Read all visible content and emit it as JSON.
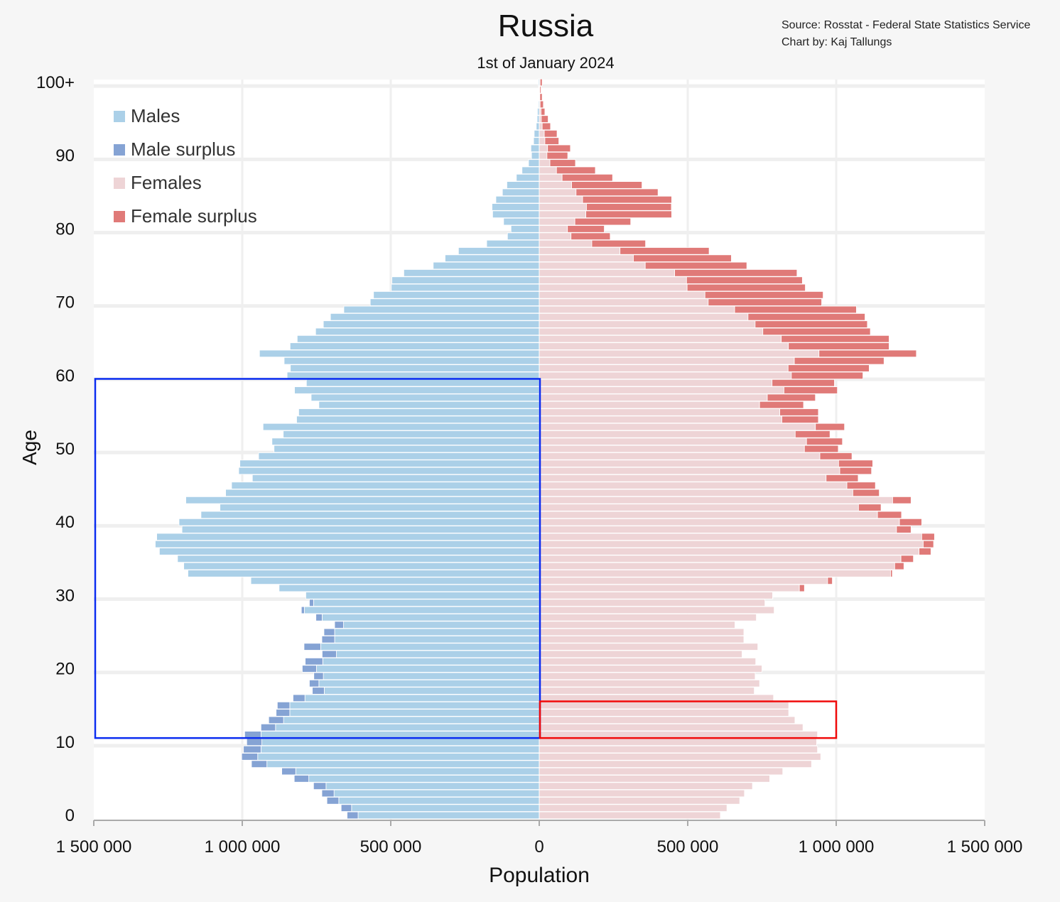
{
  "title": "Russia",
  "subtitle": "1st of January 2024",
  "source_line": "Source: Rosstat - Federal State Statistics Service",
  "credit_line": "Chart by: Kaj Tallungs",
  "colors": {
    "males": "#abd0e8",
    "male_surplus": "#85a3d4",
    "females": "#eed4d6",
    "female_surplus": "#e07a78",
    "highlight_blue": "#0a2cf0",
    "highlight_red": "#f00a0a"
  },
  "legend": [
    {
      "label": "Males",
      "color": "#abd0e8"
    },
    {
      "label": "Male surplus",
      "color": "#85a3d4"
    },
    {
      "label": "Females",
      "color": "#eed4d6"
    },
    {
      "label": "Female surplus",
      "color": "#e07a78"
    }
  ],
  "chart_data": {
    "type": "bar",
    "orientation": "horizontal-pyramid",
    "title": "Russia",
    "subtitle": "1st of January 2024",
    "xlabel": "Population",
    "ylabel": "Age",
    "xlim": [
      -1500000,
      1500000
    ],
    "ylim": [
      0,
      100
    ],
    "grid": true,
    "legend_position": "top-left",
    "x_ticks": [
      {
        "value": -1500000,
        "label": "1 500 000"
      },
      {
        "value": -1000000,
        "label": "1 000 000"
      },
      {
        "value": -500000,
        "label": "500 000"
      },
      {
        "value": 0,
        "label": "0"
      },
      {
        "value": 500000,
        "label": "500 000"
      },
      {
        "value": 1000000,
        "label": "1 000 000"
      },
      {
        "value": 1500000,
        "label": "1 500 000"
      }
    ],
    "y_ticks": [
      {
        "value": 0,
        "label": "0"
      },
      {
        "value": 10,
        "label": "10"
      },
      {
        "value": 20,
        "label": "20"
      },
      {
        "value": 30,
        "label": "30"
      },
      {
        "value": 40,
        "label": "40"
      },
      {
        "value": 50,
        "label": "50"
      },
      {
        "value": 60,
        "label": "60"
      },
      {
        "value": 70,
        "label": "70"
      },
      {
        "value": 80,
        "label": "80"
      },
      {
        "value": 90,
        "label": "90"
      },
      {
        "value": 100,
        "label": "100+"
      }
    ],
    "ages_from": 0,
    "males": [
      647000,
      667000,
      715000,
      732000,
      760000,
      825000,
      867000,
      969000,
      1002000,
      996000,
      985000,
      992000,
      937000,
      911000,
      886000,
      882000,
      829000,
      764000,
      774000,
      759000,
      798000,
      788000,
      731000,
      792000,
      732000,
      725000,
      689000,
      752000,
      801000,
      774000,
      786000,
      876000,
      971000,
      1183000,
      1197000,
      1218000,
      1279000,
      1293000,
      1288000,
      1203000,
      1213000,
      1139000,
      1075000,
      1190000,
      1056000,
      1036000,
      966000,
      1012000,
      1008000,
      945000,
      893000,
      900000,
      862000,
      930000,
      817000,
      810000,
      742000,
      768000,
      824000,
      784000,
      849000,
      838000,
      859000,
      942000,
      839000,
      815000,
      753000,
      727000,
      703000,
      658000,
      569000,
      558000,
      498000,
      496000,
      456000,
      357000,
      317000,
      272000,
      177000,
      107000,
      95000,
      120000,
      157000,
      159000,
      146000,
      124000,
      109000,
      77000,
      58000,
      36000,
      26000,
      28000,
      19000,
      17000,
      10000,
      7000,
      6000,
      3000,
      2000,
      2000,
      3000
    ],
    "females": [
      610000,
      632000,
      675000,
      691000,
      718000,
      776000,
      820000,
      917000,
      948000,
      937000,
      934000,
      937000,
      888000,
      861000,
      840000,
      840000,
      789000,
      724000,
      742000,
      727000,
      750000,
      729000,
      683000,
      736000,
      689000,
      689000,
      659000,
      731000,
      791000,
      760000,
      787000,
      893000,
      987000,
      1189000,
      1228000,
      1260000,
      1319000,
      1328000,
      1331000,
      1252000,
      1288000,
      1220000,
      1151000,
      1252000,
      1145000,
      1132000,
      1074000,
      1119000,
      1123000,
      1053000,
      1007000,
      1021000,
      979000,
      1028000,
      940000,
      940000,
      890000,
      930000,
      1004000,
      994000,
      1090000,
      1111000,
      1161000,
      1270000,
      1178000,
      1178000,
      1115000,
      1105000,
      1097000,
      1068000,
      951000,
      956000,
      896000,
      886000,
      868000,
      699000,
      647000,
      572000,
      358000,
      239000,
      219000,
      308000,
      446000,
      445000,
      446000,
      400000,
      346000,
      247000,
      189000,
      122000,
      96000,
      105000,
      66000,
      60000,
      38000,
      30000,
      19000,
      14000,
      10000,
      6000,
      10000
    ],
    "highlights": [
      {
        "side": "males",
        "age_from": 11,
        "age_to": 59,
        "value_from": 0,
        "value_to": 1500000,
        "color": "#0a2cf0"
      },
      {
        "side": "females",
        "age_from": 11,
        "age_to": 15,
        "value_from": 0,
        "value_to": 1000000,
        "color": "#f00a0a"
      }
    ]
  }
}
